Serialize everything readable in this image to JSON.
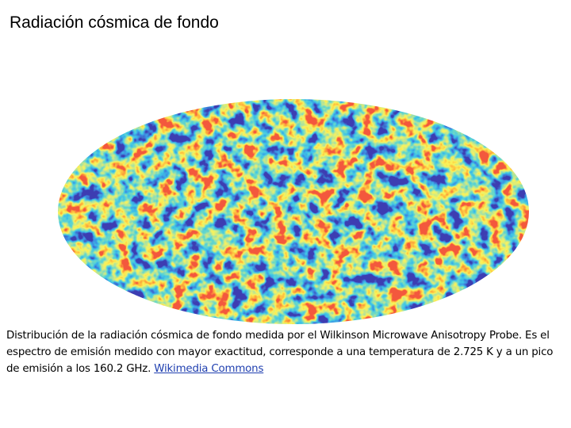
{
  "header": {
    "title": "Radiación cósmica de fondo"
  },
  "caption": {
    "text": "Distribución de la radiación cósmica de fondo medida por el Wilkinson Microwave Anisotropy Probe. Es el espectro de emisión medido con mayor exactitud, corresponde a una temperatura de 2.725 K y a un pico de emisión a los 160.2 GHz.",
    "link": "Wikimedia Commons"
  }
}
